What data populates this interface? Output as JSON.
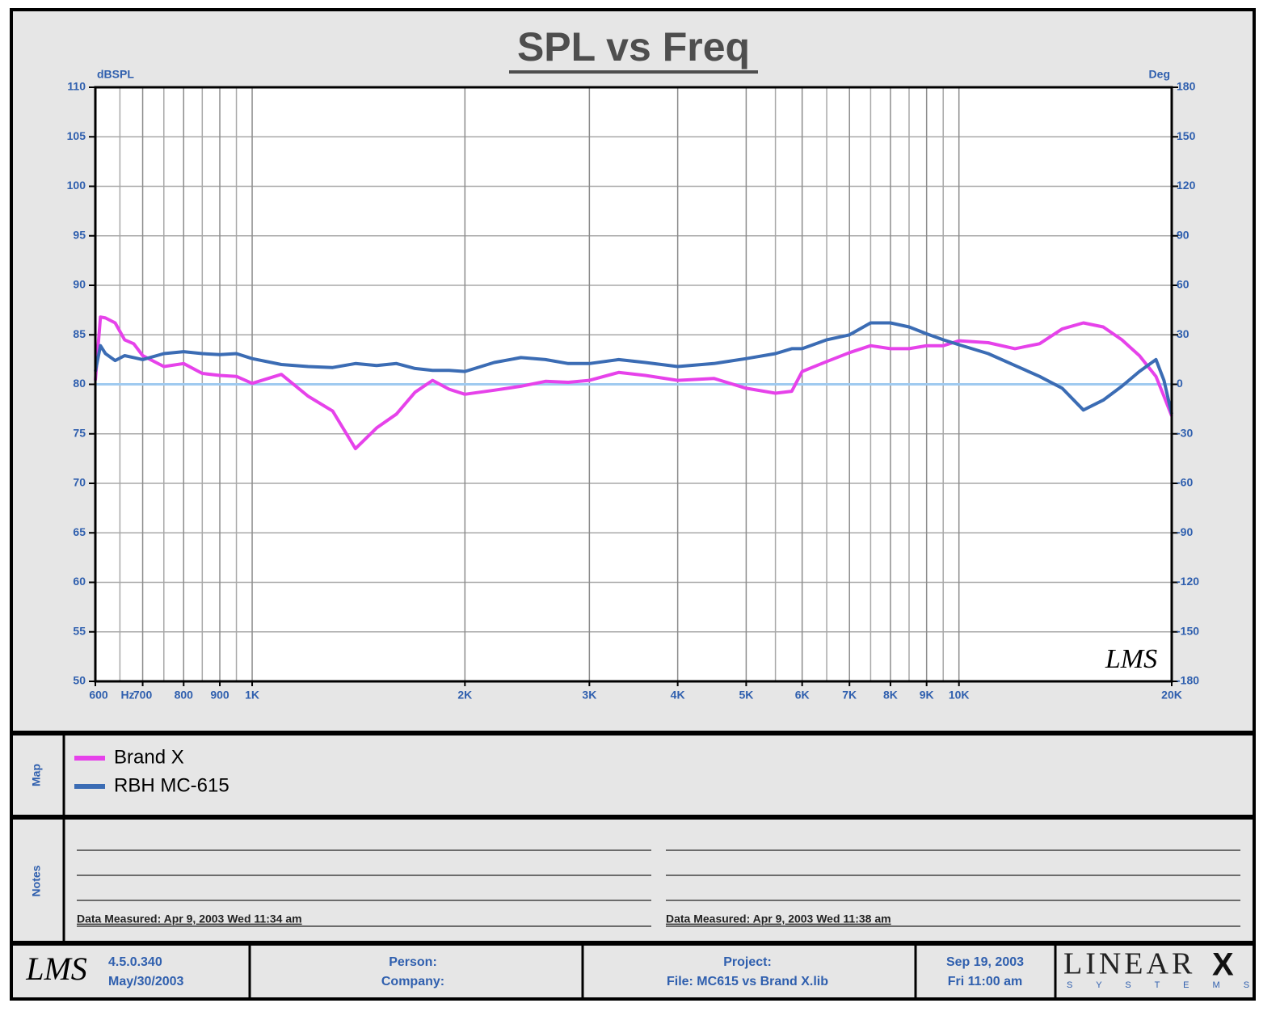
{
  "chart_data": {
    "type": "line",
    "title": "SPL vs Freq",
    "y_label": "dBSPL",
    "y2_label": "Deg",
    "x_label": "Hz",
    "log_x": true,
    "grid": true,
    "x": [
      600,
      610,
      620,
      640,
      660,
      680,
      700,
      750,
      800,
      850,
      900,
      950,
      1000,
      1100,
      1200,
      1300,
      1400,
      1500,
      1600,
      1700,
      1800,
      1900,
      2000,
      2200,
      2400,
      2600,
      2800,
      3000,
      3300,
      3600,
      4000,
      4500,
      5000,
      5500,
      5800,
      6000,
      6500,
      7000,
      7500,
      8000,
      8500,
      9000,
      9500,
      10000,
      11000,
      12000,
      13000,
      14000,
      15000,
      16000,
      17000,
      18000,
      19000,
      19500,
      20000
    ],
    "series": [
      {
        "name": "Brand X",
        "color": "#e642ea",
        "values": [
          80.4,
          86.8,
          86.7,
          86.2,
          84.5,
          84.1,
          82.9,
          81.8,
          82.1,
          81.1,
          80.9,
          80.8,
          80.1,
          81.0,
          78.8,
          77.3,
          73.5,
          75.6,
          77.0,
          79.2,
          80.4,
          79.5,
          79.0,
          79.4,
          79.8,
          80.3,
          80.2,
          80.4,
          81.2,
          80.9,
          80.4,
          80.6,
          79.6,
          79.1,
          79.3,
          81.3,
          82.3,
          83.2,
          83.9,
          83.6,
          83.6,
          83.9,
          83.9,
          84.4,
          84.2,
          83.6,
          84.1,
          85.6,
          86.2,
          85.8,
          84.5,
          82.9,
          80.8,
          78.8,
          76.8
        ]
      },
      {
        "name": "RBH MC-615",
        "color": "#3b6cb4",
        "values": [
          81.3,
          83.9,
          83.1,
          82.4,
          82.9,
          82.7,
          82.5,
          83.1,
          83.3,
          83.1,
          83.0,
          83.1,
          82.6,
          82.0,
          81.8,
          81.7,
          82.1,
          81.9,
          82.1,
          81.6,
          81.4,
          81.4,
          81.3,
          82.2,
          82.7,
          82.5,
          82.1,
          82.1,
          82.5,
          82.2,
          81.8,
          82.1,
          82.6,
          83.1,
          83.6,
          83.6,
          84.5,
          85.0,
          86.2,
          86.2,
          85.8,
          85.1,
          84.5,
          84.0,
          83.1,
          81.9,
          80.8,
          79.6,
          77.4,
          78.4,
          79.8,
          81.3,
          82.5,
          80.4,
          77.0
        ]
      }
    ],
    "baseline": {
      "value": 80,
      "color": "#9fcaf0"
    },
    "xlim": [
      600,
      20000
    ],
    "xticks": [
      600,
      700,
      800,
      900,
      {
        "value": 1000,
        "label": "1K"
      },
      {
        "value": 2000,
        "label": "2K"
      },
      {
        "value": 3000,
        "label": "3K"
      },
      {
        "value": 4000,
        "label": "4K"
      },
      {
        "value": 5000,
        "label": "5K"
      },
      {
        "value": 6000,
        "label": "6K"
      },
      {
        "value": 7000,
        "label": "7K"
      },
      {
        "value": 8000,
        "label": "8K"
      },
      {
        "value": 9000,
        "label": "9K"
      },
      {
        "value": 10000,
        "label": "10K"
      },
      {
        "value": 20000,
        "label": "20K"
      }
    ],
    "x_minor_ticks": [
      650,
      750,
      850,
      950,
      5500,
      6500,
      7500,
      8500,
      9500
    ],
    "ylim": [
      50,
      110
    ],
    "yticks": [
      50,
      55,
      60,
      65,
      70,
      75,
      80,
      85,
      90,
      95,
      100,
      105,
      110
    ],
    "y2lim": [
      -180,
      180
    ],
    "y2ticks": [
      -180,
      -150,
      -120,
      -90,
      -60,
      -30,
      0,
      30,
      60,
      90,
      120,
      150,
      180
    ],
    "watermark": "LMS"
  },
  "map": {
    "label": "Map"
  },
  "notes": {
    "label": "Notes",
    "left": "Data Measured: Apr  9, 2003  Wed 11:34 am",
    "right": "Data Measured: Apr  9, 2003  Wed 11:38 am"
  },
  "footer": {
    "logo": "LMS",
    "version": "4.5.0.340",
    "build_date": "May/30/2003",
    "person": "Person:",
    "company": "Company:",
    "project": "Project:",
    "file": "File: MC615 vs Brand X.lib",
    "date": "Sep 19, 2003",
    "time": "Fri 11:00 am",
    "brand": "LINEAR",
    "brand_x": "X",
    "brand_sub": "S Y S T E M S"
  }
}
